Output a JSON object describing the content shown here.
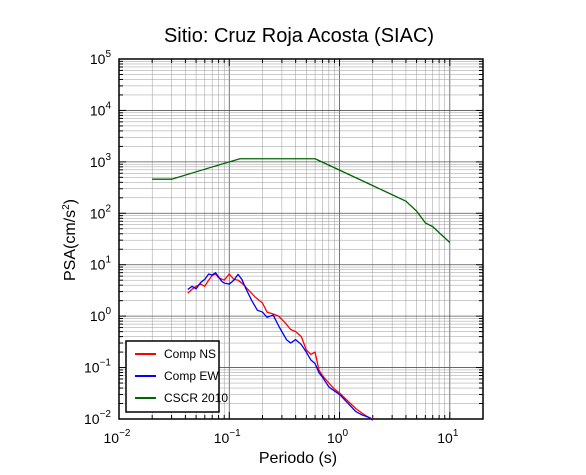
{
  "chart_data": {
    "type": "line",
    "title": "Sitio: Cruz Roja Acosta (SIAC)",
    "xlabel": "Periodo (s)",
    "ylabel": "PSA(cm/s²)",
    "ylabel_parts": {
      "main": "PSA(cm/s",
      "sup": "2",
      "close": ")"
    },
    "x_scale": "log",
    "y_scale": "log",
    "xlim": [
      0.01,
      20
    ],
    "ylim": [
      0.01,
      100000
    ],
    "grid": true,
    "legend_position": "bottom-left",
    "x_ticks": [
      {
        "base": "10",
        "exp": "−2",
        "value": 0.01
      },
      {
        "base": "10",
        "exp": "−1",
        "value": 0.1
      },
      {
        "base": "10",
        "exp": "0",
        "value": 1
      },
      {
        "base": "10",
        "exp": "1",
        "value": 10
      }
    ],
    "y_ticks": [
      {
        "base": "10",
        "exp": "−2",
        "value": 0.01
      },
      {
        "base": "10",
        "exp": "−1",
        "value": 0.1
      },
      {
        "base": "10",
        "exp": "0",
        "value": 1
      },
      {
        "base": "10",
        "exp": "1",
        "value": 10
      },
      {
        "base": "10",
        "exp": "2",
        "value": 100
      },
      {
        "base": "10",
        "exp": "3",
        "value": 1000
      },
      {
        "base": "10",
        "exp": "4",
        "value": 10000
      },
      {
        "base": "10",
        "exp": "5",
        "value": 100000
      }
    ],
    "series": [
      {
        "name": "Comp NS",
        "color": "#ff0000",
        "points": [
          [
            0.042,
            2.8
          ],
          [
            0.048,
            3.6
          ],
          [
            0.055,
            4.2
          ],
          [
            0.06,
            3.8
          ],
          [
            0.065,
            5.0
          ],
          [
            0.07,
            6.2
          ],
          [
            0.075,
            6.6
          ],
          [
            0.08,
            5.6
          ],
          [
            0.09,
            5.0
          ],
          [
            0.1,
            6.6
          ],
          [
            0.11,
            5.2
          ],
          [
            0.12,
            5.0
          ],
          [
            0.13,
            4.4
          ],
          [
            0.15,
            3.2
          ],
          [
            0.17,
            2.4
          ],
          [
            0.2,
            1.8
          ],
          [
            0.22,
            1.2
          ],
          [
            0.25,
            1.1
          ],
          [
            0.28,
            1.0
          ],
          [
            0.32,
            0.75
          ],
          [
            0.36,
            0.55
          ],
          [
            0.4,
            0.5
          ],
          [
            0.45,
            0.4
          ],
          [
            0.5,
            0.22
          ],
          [
            0.55,
            0.18
          ],
          [
            0.6,
            0.2
          ],
          [
            0.65,
            0.09
          ],
          [
            0.7,
            0.07
          ],
          [
            0.8,
            0.05
          ],
          [
            0.9,
            0.038
          ],
          [
            1.0,
            0.032
          ],
          [
            1.2,
            0.022
          ],
          [
            1.4,
            0.016
          ],
          [
            1.6,
            0.013
          ],
          [
            1.8,
            0.011
          ],
          [
            2.0,
            0.01
          ]
        ]
      },
      {
        "name": "Comp EW",
        "color": "#0000ff",
        "points": [
          [
            0.042,
            3.3
          ],
          [
            0.046,
            3.8
          ],
          [
            0.05,
            3.4
          ],
          [
            0.055,
            4.5
          ],
          [
            0.06,
            5.2
          ],
          [
            0.065,
            6.6
          ],
          [
            0.07,
            6.3
          ],
          [
            0.075,
            7.0
          ],
          [
            0.08,
            5.8
          ],
          [
            0.085,
            4.8
          ],
          [
            0.09,
            4.4
          ],
          [
            0.1,
            4.2
          ],
          [
            0.11,
            5.0
          ],
          [
            0.12,
            6.5
          ],
          [
            0.13,
            5.2
          ],
          [
            0.14,
            3.6
          ],
          [
            0.16,
            2.0
          ],
          [
            0.18,
            1.3
          ],
          [
            0.2,
            1.2
          ],
          [
            0.22,
            0.95
          ],
          [
            0.25,
            1.05
          ],
          [
            0.28,
            0.65
          ],
          [
            0.3,
            0.5
          ],
          [
            0.33,
            0.35
          ],
          [
            0.36,
            0.3
          ],
          [
            0.4,
            0.35
          ],
          [
            0.45,
            0.28
          ],
          [
            0.5,
            0.2
          ],
          [
            0.55,
            0.14
          ],
          [
            0.6,
            0.12
          ],
          [
            0.65,
            0.08
          ],
          [
            0.7,
            0.065
          ],
          [
            0.8,
            0.042
          ],
          [
            0.9,
            0.035
          ],
          [
            1.0,
            0.03
          ],
          [
            1.2,
            0.02
          ],
          [
            1.4,
            0.014
          ],
          [
            1.6,
            0.012
          ],
          [
            1.8,
            0.011
          ],
          [
            2.0,
            0.0095
          ]
        ]
      },
      {
        "name": "CSCR 2010",
        "color": "#006400",
        "points": [
          [
            0.02,
            460
          ],
          [
            0.03,
            460
          ],
          [
            0.06,
            720
          ],
          [
            0.125,
            1150
          ],
          [
            0.6,
            1150
          ],
          [
            1.0,
            690
          ],
          [
            2.0,
            345
          ],
          [
            4.0,
            172
          ],
          [
            5.0,
            110
          ],
          [
            6.0,
            65
          ],
          [
            7.0,
            55
          ],
          [
            8.0,
            42
          ],
          [
            10.0,
            27
          ]
        ]
      }
    ]
  }
}
